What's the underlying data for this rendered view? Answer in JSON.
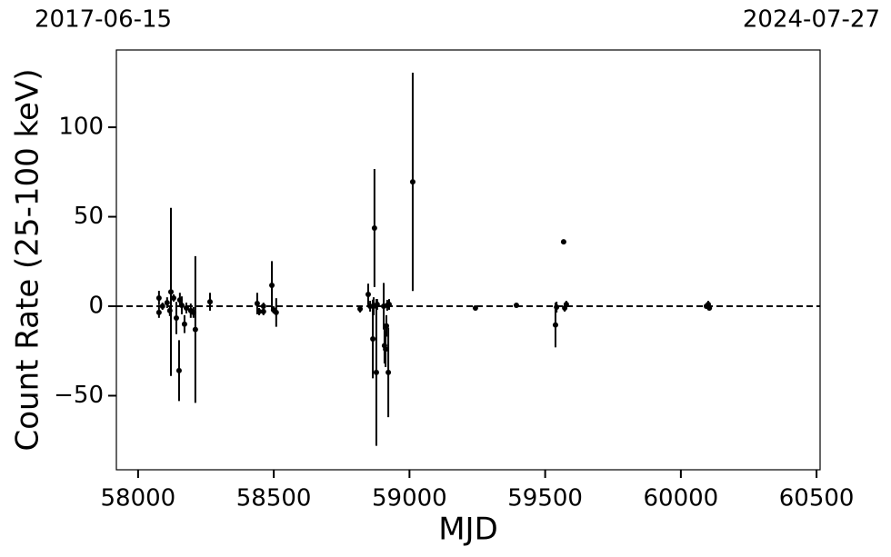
{
  "chart_data": {
    "type": "errorbar_scatter",
    "xlabel": "MJD",
    "ylabel": "Count Rate (25-100 keV)",
    "annotations": [
      "2017-06-15",
      "2024-07-27"
    ],
    "color": "#000000",
    "reference_line": 0,
    "xlim": [
      57920,
      60513
    ],
    "ylim": [
      -91.4,
      143.2
    ],
    "xticks": [
      58000,
      58500,
      59000,
      59500,
      60000,
      60500
    ],
    "yticks": [
      {
        "value": -50,
        "label": "−50"
      },
      0,
      50,
      100
    ],
    "x": [
      58077,
      58077,
      58090,
      58107,
      58121,
      58117,
      58131,
      58141,
      58151,
      58154,
      58161,
      58171,
      58178,
      58194,
      58204,
      58211,
      58265,
      58439,
      58446,
      58462,
      58462,
      58493,
      58499,
      58509,
      58818,
      58848,
      58855,
      58865,
      58868,
      58871,
      58878,
      58881,
      58905,
      58908,
      58912,
      58915,
      58918,
      58922,
      58925,
      59012,
      59243,
      59394,
      59538,
      59542,
      59568,
      59572,
      59578,
      60094,
      60101,
      60105
    ],
    "values": [
      4.6,
      -3.5,
      0,
      2,
      8,
      -2.5,
      4.6,
      -6.6,
      -36,
      3.5,
      0.5,
      -10,
      -1,
      -2.5,
      -3.5,
      -13,
      2.5,
      1.5,
      -3,
      -3,
      0,
      11.7,
      -2,
      -3.5,
      -1.5,
      6.6,
      0,
      -18.3,
      0,
      43.7,
      -37,
      1,
      0,
      -22,
      -24,
      -11,
      0.5,
      -37,
      1,
      69.5,
      -1,
      0.5,
      -10.5,
      -0.5,
      36,
      -1,
      1,
      0,
      1,
      -1
    ],
    "errors": [
      4,
      3,
      2,
      3,
      47,
      3,
      2,
      9,
      17,
      4,
      5,
      5,
      3,
      4,
      3,
      41,
      5,
      6,
      2,
      2,
      2,
      13.5,
      2,
      8,
      2,
      6,
      3,
      22,
      5,
      33,
      41,
      3,
      13,
      10,
      10,
      6,
      3,
      25,
      3,
      61,
      1,
      1,
      12.5,
      3,
      1,
      2,
      2,
      1,
      2,
      1
    ]
  }
}
